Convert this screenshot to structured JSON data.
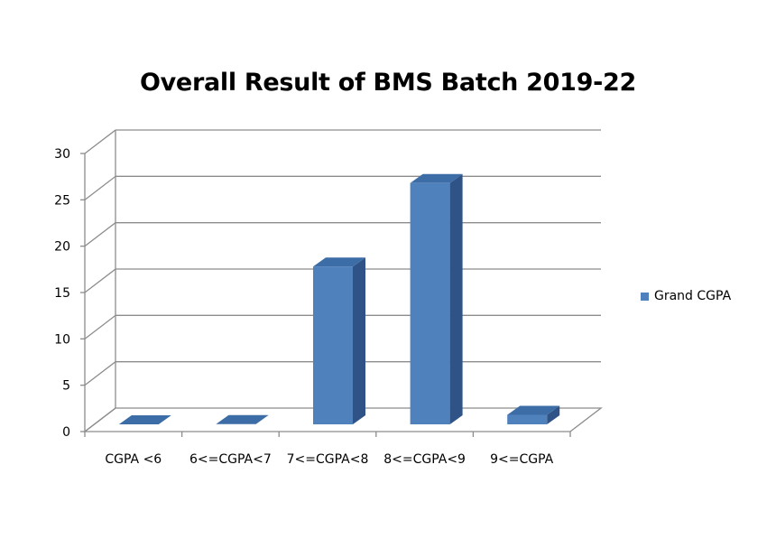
{
  "chart_data": {
    "type": "bar",
    "title": "Overall Result of BMS Batch 2019-22",
    "xlabel": "",
    "ylabel": "",
    "categories": [
      "CGPA <6",
      "6<=CGPA<7",
      "7<=CGPA<8",
      "8<=CGPA<9",
      "9<=CGPA"
    ],
    "series": [
      {
        "name": "Grand CGPA",
        "values": [
          0,
          1,
          18,
          27,
          2
        ],
        "color": "#4f81bd"
      }
    ],
    "ylim": [
      0,
      30
    ],
    "yticks": [
      "0",
      "5",
      "10",
      "15",
      "20",
      "25",
      "30"
    ],
    "grid": true,
    "legend_position": "right",
    "style": "3d-column"
  }
}
